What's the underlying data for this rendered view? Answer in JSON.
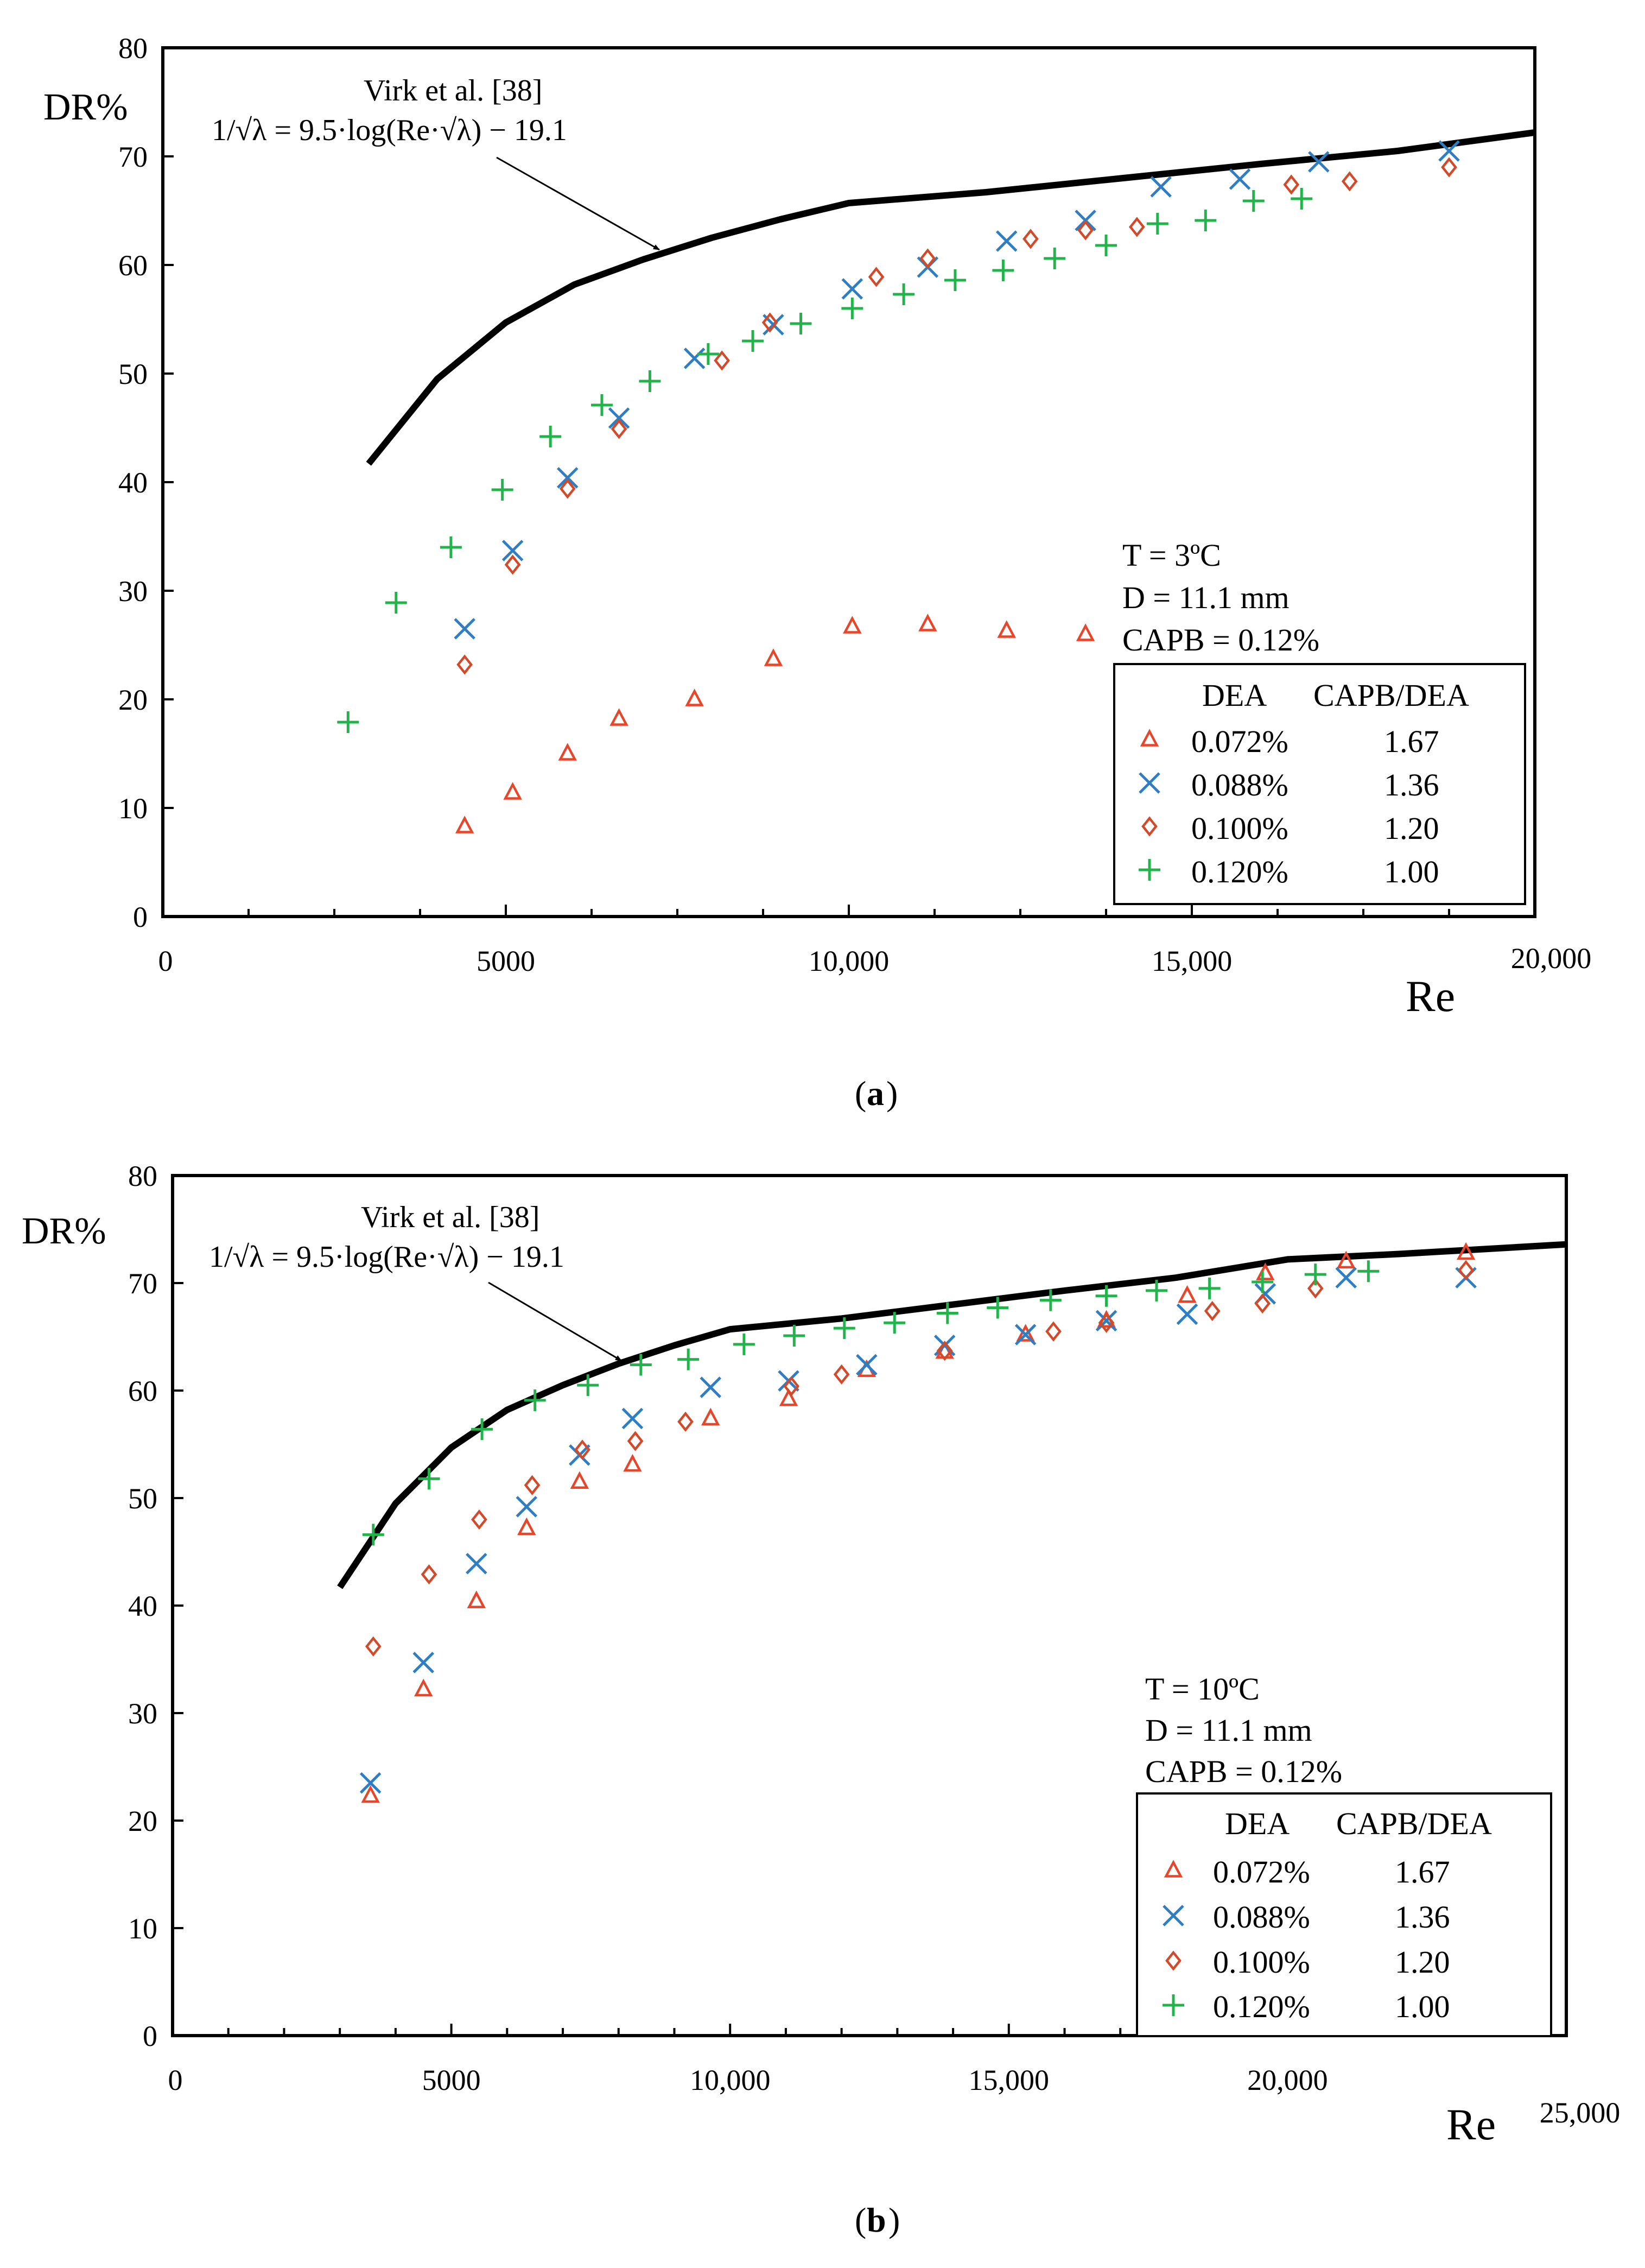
{
  "colors": {
    "tri": "#e8462a",
    "cross": "#2f7ec4",
    "diam": "#d24a2a",
    "plus": "#22b44a",
    "curve": "#000000"
  },
  "chart_data": [
    {
      "type": "scatter",
      "caption": "a",
      "ylabel": "DR%",
      "xlabel": "Re",
      "xlim": [
        0,
        20000
      ],
      "ylim": [
        0,
        80
      ],
      "xticks": [
        "0",
        "5000",
        "10,000",
        "15,000",
        "20,000"
      ],
      "yticks": [
        "0",
        "10",
        "20",
        "30",
        "40",
        "50",
        "60",
        "70",
        "80"
      ],
      "annotation": {
        "line1": "Virk et al. [38]",
        "line2": "1/√λ = 9.5·log(Re·√λ) − 19.1"
      },
      "conditions": [
        "T = 3ºC",
        "D = 11.1 mm",
        "CAPB = 0.12%"
      ],
      "legend_header": {
        "col1": "DEA",
        "col2": "CAPB/DEA"
      },
      "virk_curve": [
        [
          3000,
          41.7
        ],
        [
          4000,
          49.5
        ],
        [
          5000,
          54.7
        ],
        [
          6000,
          58.2
        ],
        [
          7000,
          60.5
        ],
        [
          8000,
          62.5
        ],
        [
          9000,
          64.2
        ],
        [
          10000,
          65.7
        ],
        [
          12000,
          66.7
        ],
        [
          14000,
          68.0
        ],
        [
          16000,
          69.3
        ],
        [
          18000,
          70.5
        ],
        [
          20000,
          72.2
        ]
      ],
      "series": [
        {
          "name": "0.072%",
          "ratio": "1.67",
          "marker": "tri",
          "points": [
            [
              4400,
              8.3
            ],
            [
              5100,
              11.4
            ],
            [
              5900,
              15.0
            ],
            [
              6650,
              18.2
            ],
            [
              7750,
              20.0
            ],
            [
              8900,
              23.7
            ],
            [
              10050,
              26.7
            ],
            [
              11150,
              26.9
            ],
            [
              12300,
              26.3
            ],
            [
              13450,
              26.0
            ]
          ]
        },
        {
          "name": "0.088%",
          "ratio": "1.36",
          "marker": "cross",
          "points": [
            [
              4400,
              26.5
            ],
            [
              5100,
              33.7
            ],
            [
              5900,
              40.4
            ],
            [
              6650,
              45.9
            ],
            [
              7750,
              51.4
            ],
            [
              8900,
              54.5
            ],
            [
              10050,
              57.8
            ],
            [
              11150,
              59.8
            ],
            [
              12300,
              62.2
            ],
            [
              13450,
              64.1
            ],
            [
              14550,
              67.2
            ],
            [
              15700,
              67.9
            ],
            [
              16850,
              69.5
            ],
            [
              18750,
              70.5
            ]
          ]
        },
        {
          "name": "0.100%",
          "ratio": "1.20",
          "marker": "diam",
          "points": [
            [
              4400,
              23.2
            ],
            [
              5100,
              32.4
            ],
            [
              5900,
              39.4
            ],
            [
              6650,
              44.9
            ],
            [
              8150,
              51.2
            ],
            [
              8850,
              54.7
            ],
            [
              10400,
              58.9
            ],
            [
              11150,
              60.6
            ],
            [
              12650,
              62.4
            ],
            [
              13450,
              63.2
            ],
            [
              14200,
              63.5
            ],
            [
              16450,
              67.4
            ],
            [
              17300,
              67.7
            ],
            [
              18750,
              69.0
            ]
          ]
        },
        {
          "name": "0.120%",
          "ratio": "1.00",
          "marker": "plus",
          "points": [
            [
              2700,
              17.9
            ],
            [
              3400,
              28.9
            ],
            [
              4200,
              34.0
            ],
            [
              4950,
              39.3
            ],
            [
              5650,
              44.2
            ],
            [
              6400,
              47.1
            ],
            [
              7100,
              49.3
            ],
            [
              7950,
              51.8
            ],
            [
              8600,
              53.0
            ],
            [
              9300,
              54.6
            ],
            [
              10050,
              56.0
            ],
            [
              10800,
              57.3
            ],
            [
              11550,
              58.6
            ],
            [
              12250,
              59.5
            ],
            [
              13000,
              60.6
            ],
            [
              13750,
              61.8
            ],
            [
              14500,
              63.8
            ],
            [
              15200,
              64.1
            ],
            [
              15900,
              65.9
            ],
            [
              16600,
              66.1
            ]
          ]
        }
      ]
    },
    {
      "type": "scatter",
      "caption": "b",
      "ylabel": "DR%",
      "xlabel": "Re",
      "xlim": [
        0,
        25000
      ],
      "ylim": [
        0,
        80
      ],
      "xticks": [
        "0",
        "5000",
        "10,000",
        "15,000",
        "20,000",
        "25,000"
      ],
      "yticks": [
        "0",
        "10",
        "20",
        "30",
        "40",
        "50",
        "60",
        "70",
        "80"
      ],
      "annotation": {
        "line1": "Virk et al. [38]",
        "line2": "1/√λ = 9.5·log(Re·√λ) − 19.1"
      },
      "conditions": [
        "T = 10ºC",
        "D = 11.1 mm",
        "CAPB = 0.12%"
      ],
      "legend_header": {
        "col1": "DEA",
        "col2": "CAPB/DEA"
      },
      "virk_curve": [
        [
          3000,
          41.7
        ],
        [
          4000,
          49.5
        ],
        [
          5000,
          54.7
        ],
        [
          6000,
          58.2
        ],
        [
          7000,
          60.5
        ],
        [
          8000,
          62.5
        ],
        [
          9000,
          64.2
        ],
        [
          10000,
          65.7
        ],
        [
          12000,
          66.7
        ],
        [
          14000,
          68.0
        ],
        [
          16000,
          69.3
        ],
        [
          18000,
          70.5
        ],
        [
          20000,
          72.2
        ],
        [
          22000,
          72.7
        ],
        [
          25000,
          73.6
        ]
      ],
      "series": [
        {
          "name": "0.072%",
          "ratio": "1.67",
          "marker": "tri",
          "points": [
            [
              3550,
              22.3
            ],
            [
              4500,
              32.2
            ],
            [
              5450,
              40.4
            ],
            [
              6350,
              47.2
            ],
            [
              7300,
              51.5
            ],
            [
              8250,
              53.1
            ],
            [
              9650,
              57.4
            ],
            [
              11050,
              59.2
            ],
            [
              12450,
              61.9
            ],
            [
              13850,
              63.6
            ],
            [
              15300,
              65.2
            ],
            [
              16750,
              66.5
            ],
            [
              18200,
              68.8
            ],
            [
              19600,
              70.9
            ],
            [
              21050,
              72.0
            ],
            [
              23200,
              72.8
            ]
          ]
        },
        {
          "name": "0.088%",
          "ratio": "1.36",
          "marker": "cross",
          "points": [
            [
              3550,
              23.5
            ],
            [
              4500,
              34.7
            ],
            [
              5450,
              43.9
            ],
            [
              6350,
              49.2
            ],
            [
              7300,
              54.0
            ],
            [
              8250,
              57.4
            ],
            [
              9650,
              60.3
            ],
            [
              11050,
              60.9
            ],
            [
              12450,
              62.4
            ],
            [
              13850,
              64.2
            ],
            [
              15300,
              65.2
            ],
            [
              16750,
              66.5
            ],
            [
              18200,
              67.1
            ],
            [
              19600,
              69.0
            ],
            [
              21050,
              70.5
            ],
            [
              23200,
              70.5
            ]
          ]
        },
        {
          "name": "0.100%",
          "ratio": "1.20",
          "marker": "diam",
          "points": [
            [
              3600,
              36.2
            ],
            [
              4600,
              42.9
            ],
            [
              5500,
              48.0
            ],
            [
              6450,
              51.2
            ],
            [
              7350,
              54.5
            ],
            [
              8300,
              55.3
            ],
            [
              9200,
              57.1
            ],
            [
              11100,
              60.4
            ],
            [
              12000,
              61.5
            ],
            [
              13850,
              63.7
            ],
            [
              15800,
              65.5
            ],
            [
              16750,
              66.3
            ],
            [
              18650,
              67.4
            ],
            [
              19550,
              68.1
            ],
            [
              20500,
              69.5
            ],
            [
              23200,
              71.2
            ]
          ]
        },
        {
          "name": "0.120%",
          "ratio": "1.00",
          "marker": "plus",
          "points": [
            [
              3600,
              46.6
            ],
            [
              4600,
              51.8
            ],
            [
              5550,
              56.4
            ],
            [
              6500,
              59.1
            ],
            [
              7450,
              60.5
            ],
            [
              8400,
              62.4
            ],
            [
              9250,
              62.9
            ],
            [
              10250,
              64.3
            ],
            [
              11150,
              65.1
            ],
            [
              12050,
              65.8
            ],
            [
              12950,
              66.3
            ],
            [
              13900,
              67.2
            ],
            [
              14800,
              67.7
            ],
            [
              15750,
              68.4
            ],
            [
              16750,
              68.8
            ],
            [
              17650,
              69.3
            ],
            [
              18600,
              69.5
            ],
            [
              19550,
              70.1
            ],
            [
              20500,
              70.8
            ],
            [
              21450,
              71.1
            ]
          ]
        }
      ]
    }
  ]
}
